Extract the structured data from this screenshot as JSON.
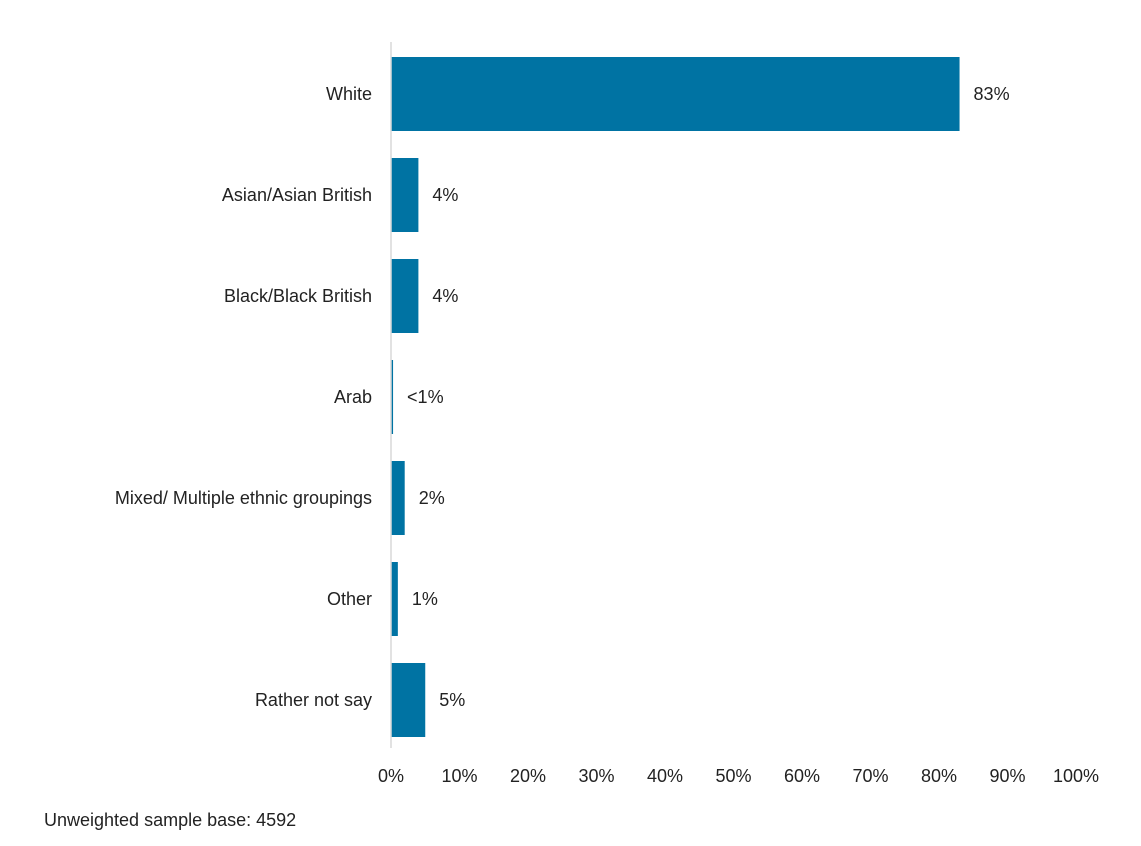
{
  "chart_data": {
    "type": "bar",
    "orientation": "horizontal",
    "categories": [
      "White",
      "Asian/Asian British",
      "Black/Black British",
      "Arab",
      "Mixed/ Multiple ethnic groupings",
      "Other",
      "Rather not say"
    ],
    "values": [
      83,
      4,
      4,
      0.3,
      2,
      1,
      5
    ],
    "value_labels": [
      "83%",
      "4%",
      "4%",
      "<1%",
      "2%",
      "1%",
      "5%"
    ],
    "xlim": [
      0,
      100
    ],
    "x_ticks": [
      0,
      10,
      20,
      30,
      40,
      50,
      60,
      70,
      80,
      90,
      100
    ],
    "x_tick_labels": [
      "0%",
      "10%",
      "20%",
      "30%",
      "40%",
      "50%",
      "60%",
      "70%",
      "80%",
      "90%",
      "100%"
    ],
    "bar_color": "#0073A3",
    "axis_color": "#D9D9D9",
    "grid": false,
    "legend": "none"
  },
  "footnote": "Unweighted sample base: 4592"
}
